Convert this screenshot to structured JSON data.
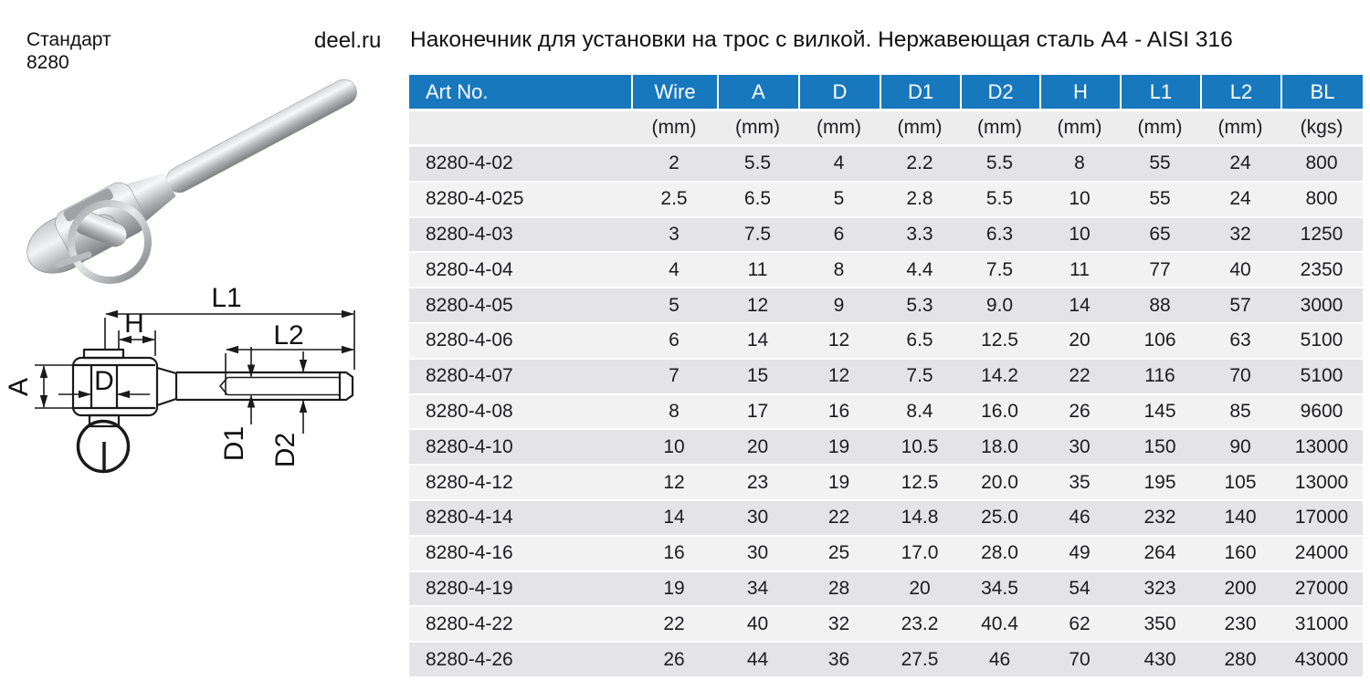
{
  "header": {
    "standard_label": "Стандарт",
    "standard_number": "8280",
    "site": "deel.ru",
    "title": "Наконечник для установки на трос с вилкой. Нержавеющая сталь A4 - AISI 316"
  },
  "drawing": {
    "labels": {
      "l1": "L1",
      "l2": "L2",
      "h": "H",
      "a": "A",
      "d": "D",
      "d1": "D1",
      "d2": "D2"
    }
  },
  "table": {
    "columns": [
      "Art No.",
      "Wire",
      "A",
      "D",
      "D1",
      "D2",
      "H",
      "L1",
      "L2",
      "BL"
    ],
    "units": [
      "",
      "(mm)",
      "(mm)",
      "(mm)",
      "(mm)",
      "(mm)",
      "(mm)",
      "(mm)",
      "(mm)",
      "(kgs)"
    ],
    "rows": [
      [
        "8280-4-02",
        "2",
        "5.5",
        "4",
        "2.2",
        "5.5",
        "8",
        "55",
        "24",
        "800"
      ],
      [
        "8280-4-025",
        "2.5",
        "6.5",
        "5",
        "2.8",
        "5.5",
        "10",
        "55",
        "24",
        "800"
      ],
      [
        "8280-4-03",
        "3",
        "7.5",
        "6",
        "3.3",
        "6.3",
        "10",
        "65",
        "32",
        "1250"
      ],
      [
        "8280-4-04",
        "4",
        "11",
        "8",
        "4.4",
        "7.5",
        "11",
        "77",
        "40",
        "2350"
      ],
      [
        "8280-4-05",
        "5",
        "12",
        "9",
        "5.3",
        "9.0",
        "14",
        "88",
        "57",
        "3000"
      ],
      [
        "8280-4-06",
        "6",
        "14",
        "12",
        "6.5",
        "12.5",
        "20",
        "106",
        "63",
        "5100"
      ],
      [
        "8280-4-07",
        "7",
        "15",
        "12",
        "7.5",
        "14.2",
        "22",
        "116",
        "70",
        "5100"
      ],
      [
        "8280-4-08",
        "8",
        "17",
        "16",
        "8.4",
        "16.0",
        "26",
        "145",
        "85",
        "9600"
      ],
      [
        "8280-4-10",
        "10",
        "20",
        "19",
        "10.5",
        "18.0",
        "30",
        "150",
        "90",
        "13000"
      ],
      [
        "8280-4-12",
        "12",
        "23",
        "19",
        "12.5",
        "20.0",
        "35",
        "195",
        "105",
        "13000"
      ],
      [
        "8280-4-14",
        "14",
        "30",
        "22",
        "14.8",
        "25.0",
        "46",
        "232",
        "140",
        "17000"
      ],
      [
        "8280-4-16",
        "16",
        "30",
        "25",
        "17.0",
        "28.0",
        "49",
        "264",
        "160",
        "24000"
      ],
      [
        "8280-4-19",
        "19",
        "34",
        "28",
        "20",
        "34.5",
        "54",
        "323",
        "200",
        "27000"
      ],
      [
        "8280-4-22",
        "22",
        "40",
        "32",
        "23.2",
        "40.4",
        "62",
        "350",
        "230",
        "31000"
      ],
      [
        "8280-4-26",
        "26",
        "44",
        "36",
        "27.5",
        "46",
        "70",
        "430",
        "280",
        "43000"
      ]
    ]
  },
  "colors": {
    "header_bg": "#1878be",
    "header_text": "#ffffff",
    "units_bg": "#ededee",
    "row_odd": "#e4e4e6",
    "row_even": "#f2f2f3",
    "text": "#1d1d1f"
  }
}
